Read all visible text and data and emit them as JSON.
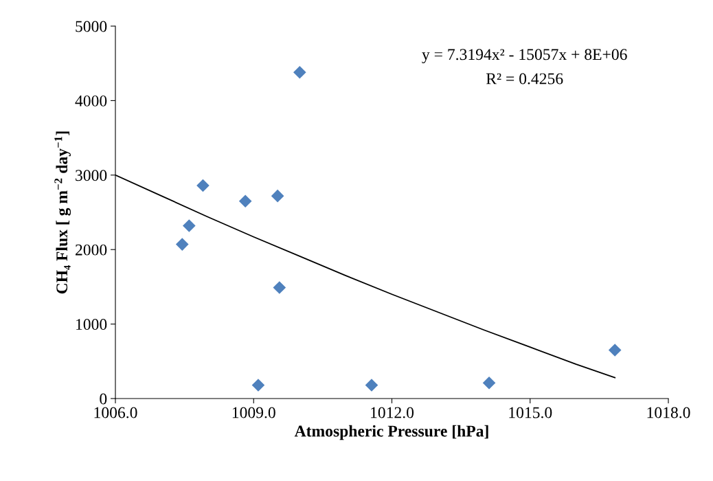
{
  "chart_data": {
    "type": "scatter",
    "xlabel": "Atmospheric Pressure [hPa]",
    "ylabel": "CH₄ Flux [ g m$^{−2}$ day$^{−1}$]",
    "xlim": [
      1006,
      1018
    ],
    "xticks": [
      {
        "value": 1006,
        "label": "1006.0"
      },
      {
        "value": 1009,
        "label": "1009.0"
      },
      {
        "value": 1012,
        "label": "1012.0"
      },
      {
        "value": 1015,
        "label": "1015.0"
      },
      {
        "value": 1018,
        "label": "1018.0"
      }
    ],
    "ylim": [
      0,
      5000
    ],
    "yticks": [
      0,
      1000,
      2000,
      3000,
      4000,
      5000
    ],
    "grid": false,
    "legend": false,
    "series": [
      {
        "color": "#4f81bd",
        "marker": "diamond",
        "x": [
          1007.45,
          1007.6,
          1007.9,
          1008.82,
          1009.52,
          1010.0,
          1009.56,
          1009.1,
          1011.56,
          1014.11,
          1016.84
        ],
        "values": [
          2070,
          2320,
          2860,
          2650,
          2720,
          4380,
          1490,
          180,
          180,
          210,
          650
        ]
      },
      {
        "type": "line",
        "color": "#000000",
        "marker": "none",
        "line_style": "solid",
        "x": [
          1006,
          1007,
          1008,
          1009,
          1010,
          1011,
          1012,
          1013,
          1014,
          1015,
          1016,
          1016.84
        ],
        "values": [
          3000,
          2720,
          2440,
          2170,
          1910,
          1650,
          1400,
          1160,
          920,
          690,
          460,
          280
        ]
      }
    ],
    "annotations": [
      "y = 7.3194x² - 15057x + 8E+06",
      "R² = 0.4256"
    ]
  }
}
